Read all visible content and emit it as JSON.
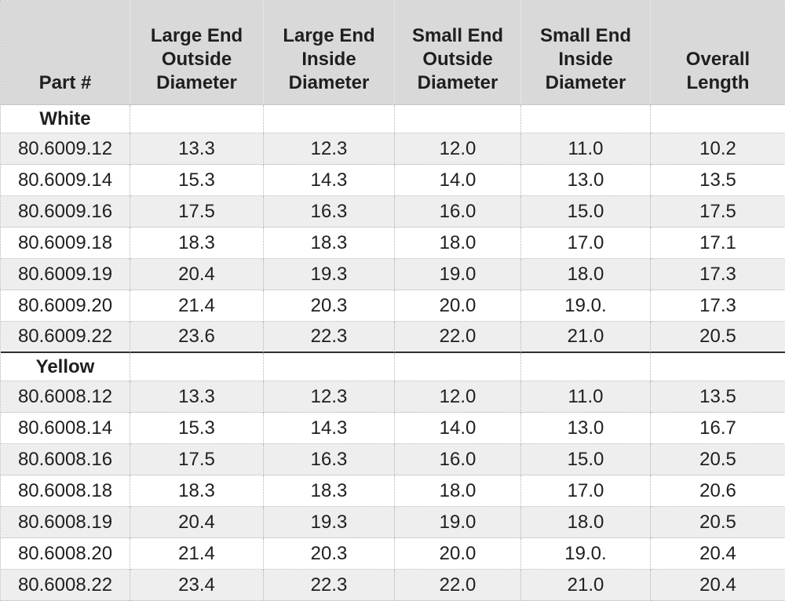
{
  "colors": {
    "header_bg": "#d9d9d9",
    "stripe_bg": "#eeeeee",
    "row_bg": "#ffffff",
    "text": "#1f1f1f",
    "section_divider": "#2f2f2f"
  },
  "table": {
    "columns": [
      "Part #",
      "Large End\nOutside\nDiameter",
      "Large End\nInside\nDiameter",
      "Small End\nOutside\nDiameter",
      "Small End\nInside\nDiameter",
      "Overall\nLength"
    ],
    "sections": [
      {
        "label": "White",
        "rows": [
          [
            "80.6009.12",
            "13.3",
            "12.3",
            "12.0",
            "11.0",
            "10.2"
          ],
          [
            "80.6009.14",
            "15.3",
            "14.3",
            "14.0",
            "13.0",
            "13.5"
          ],
          [
            "80.6009.16",
            "17.5",
            "16.3",
            "16.0",
            "15.0",
            "17.5"
          ],
          [
            "80.6009.18",
            "18.3",
            "18.3",
            "18.0",
            "17.0",
            "17.1"
          ],
          [
            "80.6009.19",
            "20.4",
            "19.3",
            "19.0",
            "18.0",
            "17.3"
          ],
          [
            "80.6009.20",
            "21.4",
            "20.3",
            "20.0",
            "19.0.",
            "17.3"
          ],
          [
            "80.6009.22",
            "23.6",
            "22.3",
            "22.0",
            "21.0",
            "20.5"
          ]
        ]
      },
      {
        "label": "Yellow",
        "rows": [
          [
            "80.6008.12",
            "13.3",
            "12.3",
            "12.0",
            "11.0",
            "13.5"
          ],
          [
            "80.6008.14",
            "15.3",
            "14.3",
            "14.0",
            "13.0",
            "16.7"
          ],
          [
            "80.6008.16",
            "17.5",
            "16.3",
            "16.0",
            "15.0",
            "20.5"
          ],
          [
            "80.6008.18",
            "18.3",
            "18.3",
            "18.0",
            "17.0",
            "20.6"
          ],
          [
            "80.6008.19",
            "20.4",
            "19.3",
            "19.0",
            "18.0",
            "20.5"
          ],
          [
            "80.6008.20",
            "21.4",
            "20.3",
            "20.0",
            "19.0.",
            "20.4"
          ],
          [
            "80.6008.22",
            "23.4",
            "22.3",
            "22.0",
            "21.0",
            "20.4"
          ]
        ]
      }
    ]
  }
}
